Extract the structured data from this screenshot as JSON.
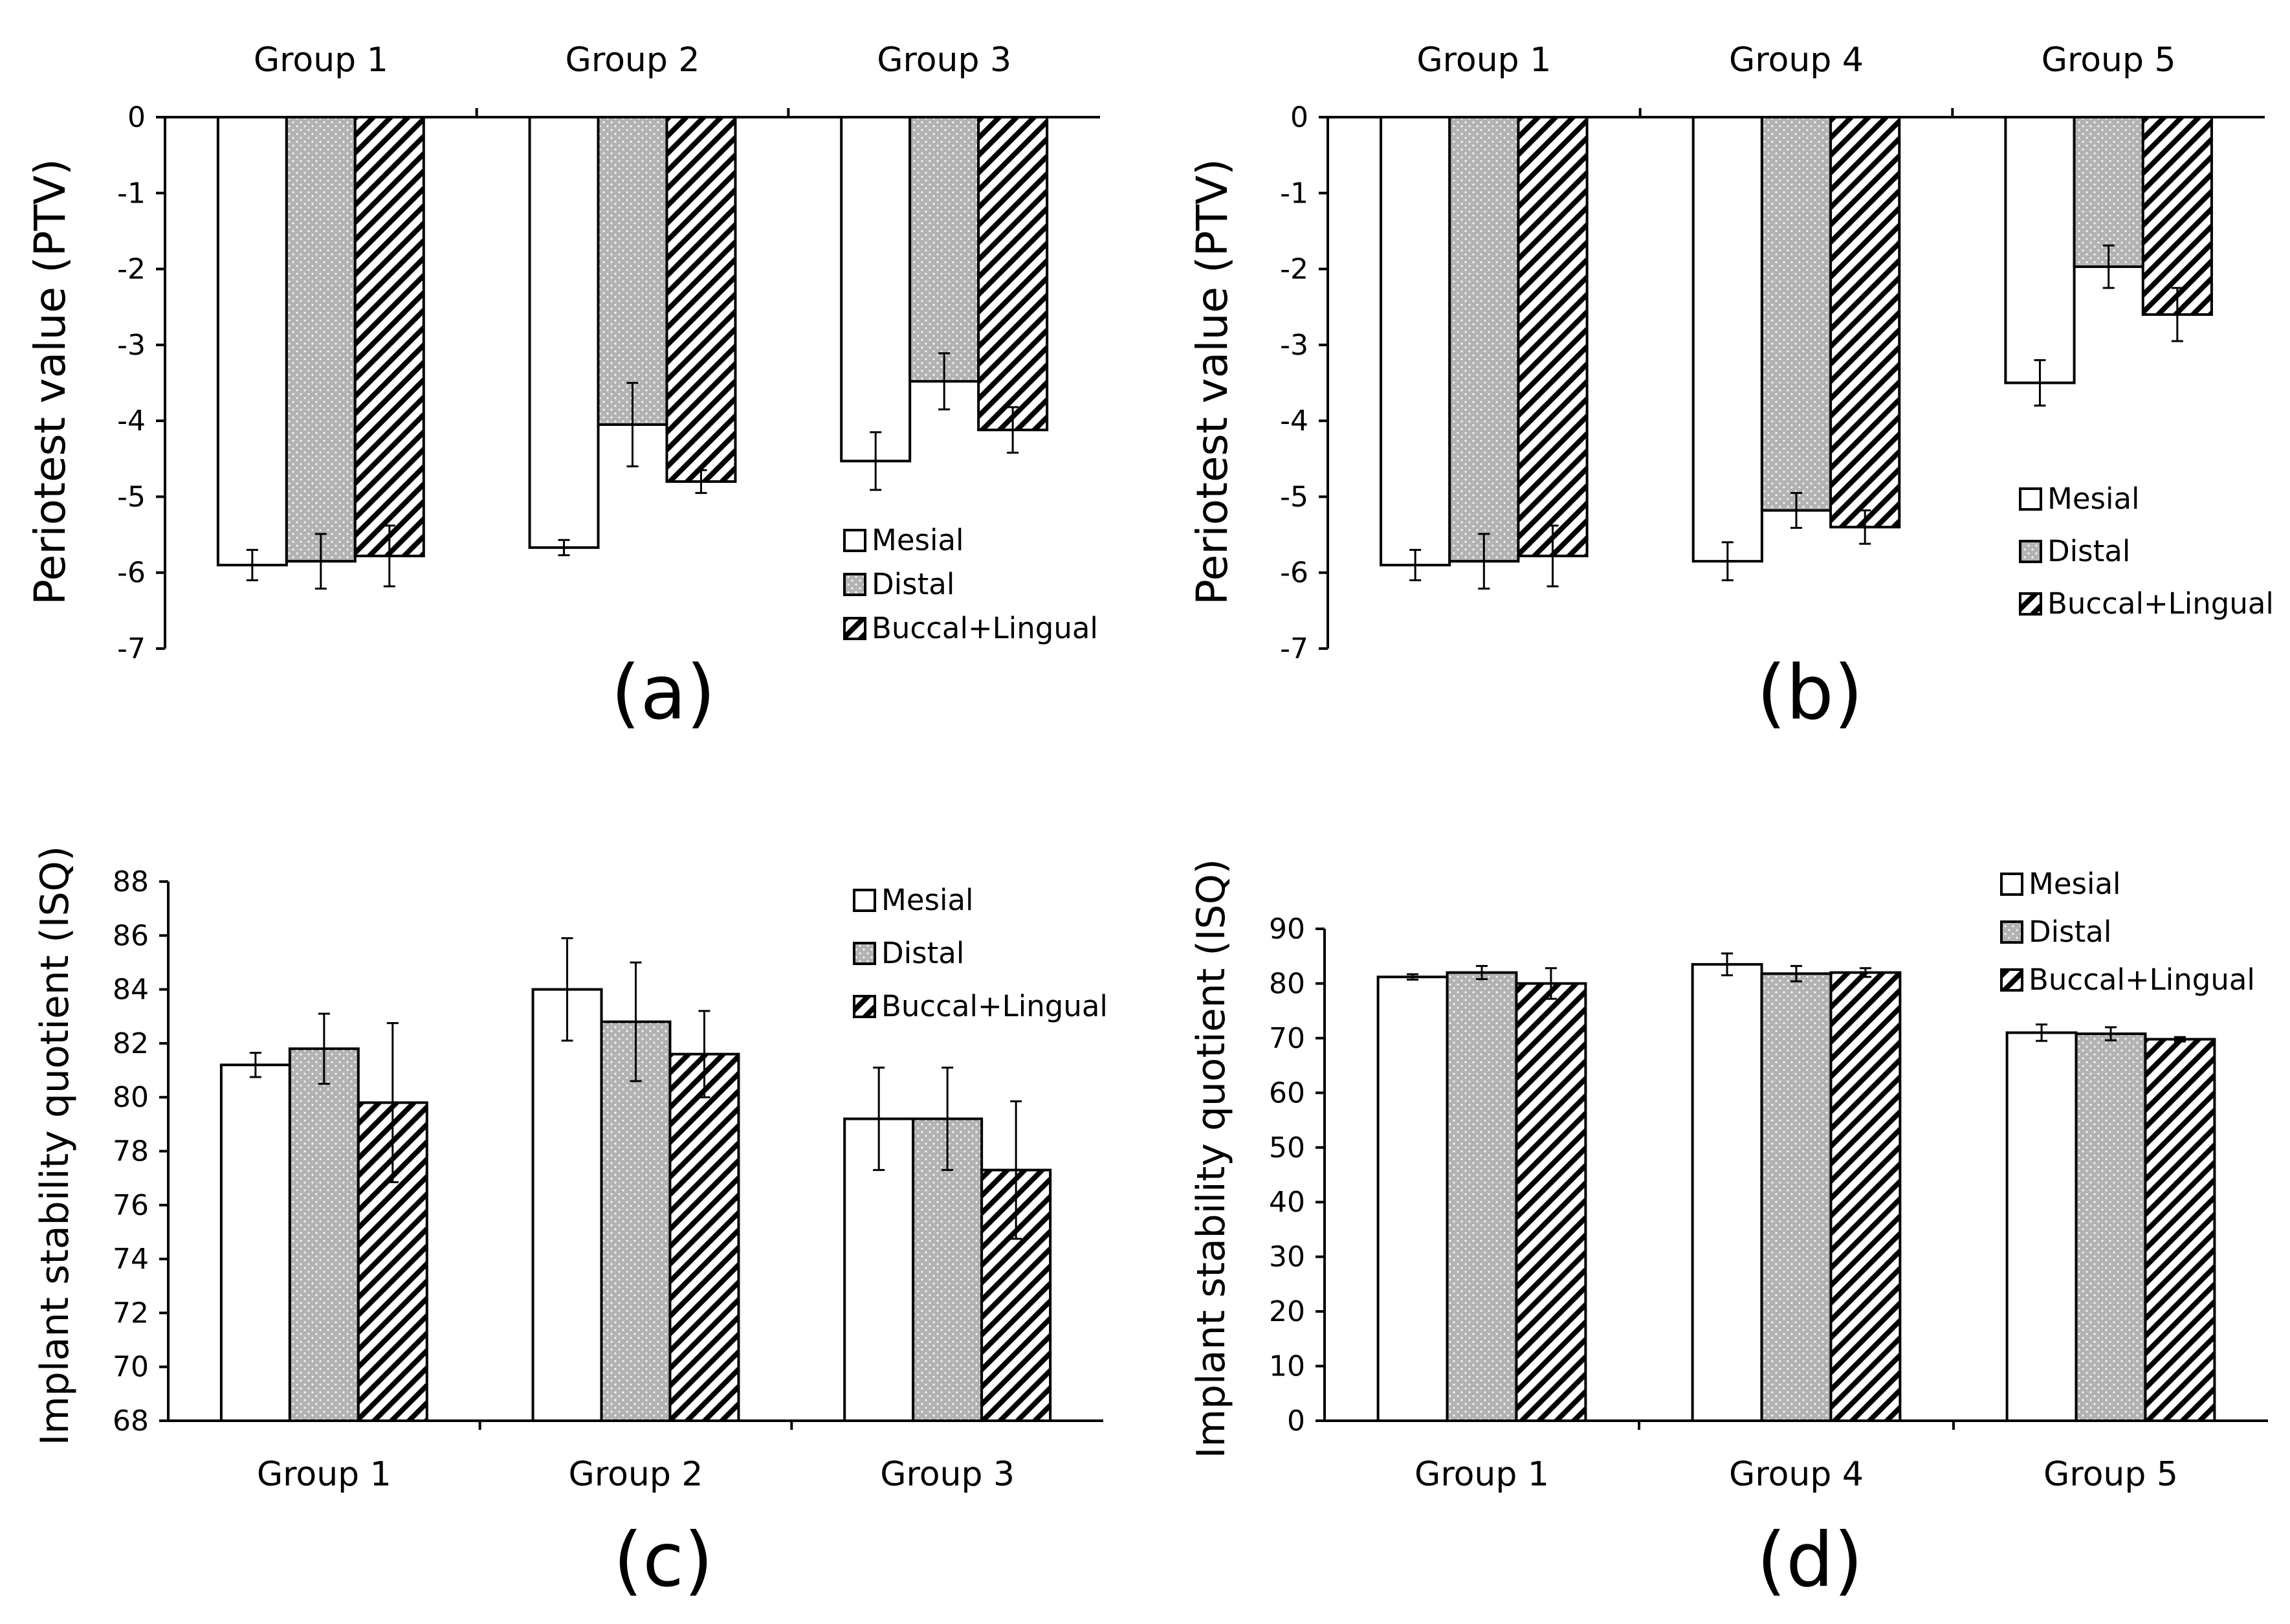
{
  "colors": {
    "mesial": "#ffffff",
    "distal": "#b3b3b3",
    "buccal_lingual_stripe": "#000000",
    "axis": "#000000"
  },
  "legend_labels": [
    "Mesial",
    "Distal",
    "Buccal+Lingual"
  ],
  "chart_data": [
    {
      "id": "a",
      "type": "bar",
      "panel_label": "(a)",
      "title": "",
      "xlabel": "",
      "ylabel": "Periotest value (PTV)",
      "categories": [
        "Group 1",
        "Group 2",
        "Group 3"
      ],
      "category_axis_position": "top",
      "ylim": [
        -7,
        0
      ],
      "yticks": [
        0,
        -1,
        -2,
        -3,
        -4,
        -5,
        -6,
        -7
      ],
      "legend_position": "bottom-right",
      "series": [
        {
          "name": "Mesial",
          "values": [
            -5.9,
            -5.67,
            -4.53
          ],
          "errors": [
            0.2,
            0.1,
            0.38
          ]
        },
        {
          "name": "Distal",
          "values": [
            -5.85,
            -4.05,
            -3.48
          ],
          "errors": [
            0.36,
            0.55,
            0.37
          ]
        },
        {
          "name": "Buccal+Lingual",
          "values": [
            -5.78,
            -4.8,
            -4.12
          ],
          "errors": [
            0.4,
            0.15,
            0.3
          ]
        }
      ]
    },
    {
      "id": "b",
      "type": "bar",
      "panel_label": "(b)",
      "title": "",
      "xlabel": "",
      "ylabel": "Periotest value (PTV)",
      "categories": [
        "Group 1",
        "Group 4",
        "Group 5"
      ],
      "category_axis_position": "top",
      "ylim": [
        -7,
        0
      ],
      "yticks": [
        0,
        -1,
        -2,
        -3,
        -4,
        -5,
        -6,
        -7
      ],
      "legend_position": "right",
      "series": [
        {
          "name": "Mesial",
          "values": [
            -5.9,
            -5.85,
            -3.5
          ],
          "errors": [
            0.2,
            0.25,
            0.3
          ]
        },
        {
          "name": "Distal",
          "values": [
            -5.85,
            -5.18,
            -1.97
          ],
          "errors": [
            0.36,
            0.23,
            0.28
          ]
        },
        {
          "name": "Buccal+Lingual",
          "values": [
            -5.78,
            -5.4,
            -2.6
          ],
          "errors": [
            0.4,
            0.22,
            0.35
          ]
        }
      ]
    },
    {
      "id": "c",
      "type": "bar",
      "panel_label": "(c)",
      "title": "",
      "xlabel": "",
      "ylabel": "Implant stability quotient (ISQ)",
      "categories": [
        "Group 1",
        "Group 2",
        "Group 3"
      ],
      "category_axis_position": "bottom",
      "ylim": [
        68,
        88
      ],
      "yticks": [
        68,
        70,
        72,
        74,
        76,
        78,
        80,
        82,
        84,
        86,
        88
      ],
      "legend_position": "top-right",
      "series": [
        {
          "name": "Mesial",
          "values": [
            81.2,
            84.0,
            79.2
          ],
          "errors": [
            0.45,
            1.9,
            1.9
          ]
        },
        {
          "name": "Distal",
          "values": [
            81.8,
            82.8,
            79.2
          ],
          "errors": [
            1.3,
            2.2,
            1.9
          ]
        },
        {
          "name": "Buccal+Lingual",
          "values": [
            79.8,
            81.6,
            77.3
          ],
          "errors": [
            2.95,
            1.6,
            2.55
          ]
        }
      ]
    },
    {
      "id": "d",
      "type": "bar",
      "panel_label": "(d)",
      "title": "",
      "xlabel": "",
      "ylabel": "Implant stability quotient (ISQ)",
      "categories": [
        "Group 1",
        "Group 4",
        "Group 5"
      ],
      "category_axis_position": "bottom",
      "ylim": [
        0,
        90
      ],
      "yticks": [
        0,
        10,
        20,
        30,
        40,
        50,
        60,
        70,
        80,
        90
      ],
      "legend_position": "top-right",
      "series": [
        {
          "name": "Mesial",
          "values": [
            81.2,
            83.5,
            71.0
          ],
          "errors": [
            0.5,
            2.0,
            1.5
          ]
        },
        {
          "name": "Distal",
          "values": [
            82.0,
            81.8,
            70.8
          ],
          "errors": [
            1.2,
            1.4,
            1.2
          ]
        },
        {
          "name": "Buccal+Lingual",
          "values": [
            80.0,
            82.0,
            69.8
          ],
          "errors": [
            2.8,
            0.8,
            0.4
          ]
        }
      ]
    }
  ]
}
